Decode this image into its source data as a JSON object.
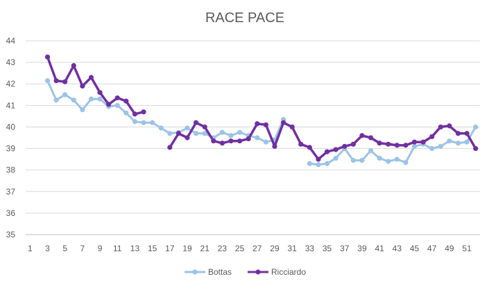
{
  "chart_data": {
    "type": "line",
    "title": "RACE PACE",
    "xlabel": "",
    "ylabel": "",
    "xlim": [
      1,
      52
    ],
    "ylim": [
      35,
      44
    ],
    "x_tick_labels": [
      1,
      3,
      5,
      7,
      9,
      11,
      13,
      15,
      17,
      19,
      21,
      23,
      25,
      27,
      29,
      31,
      33,
      35,
      37,
      39,
      41,
      43,
      45,
      47,
      49,
      51
    ],
    "y_tick_labels": [
      35,
      36,
      37,
      38,
      39,
      40,
      41,
      42,
      43,
      44
    ],
    "grid": "horizontal",
    "legend_position": "bottom",
    "series": [
      {
        "name": "Bottas",
        "color": "#9DC3E6",
        "points": [
          [
            3,
            42.15
          ],
          [
            4,
            41.25
          ],
          [
            5,
            41.5
          ],
          [
            6,
            41.25
          ],
          [
            7,
            40.8
          ],
          [
            8,
            41.3
          ],
          [
            9,
            41.3
          ],
          [
            10,
            40.95
          ],
          [
            11,
            41.0
          ],
          [
            12,
            40.65
          ],
          [
            13,
            40.25
          ],
          [
            14,
            40.2
          ],
          [
            15,
            40.2
          ],
          [
            16,
            39.95
          ],
          [
            17,
            39.7
          ],
          [
            18,
            39.75
          ],
          [
            19,
            39.95
          ],
          [
            20,
            39.7
          ],
          [
            21,
            39.7
          ],
          [
            22,
            39.5
          ],
          [
            23,
            39.75
          ],
          [
            24,
            39.6
          ],
          [
            25,
            39.75
          ],
          [
            26,
            39.6
          ],
          [
            27,
            39.5
          ],
          [
            28,
            39.3
          ],
          [
            29,
            39.4
          ],
          [
            30,
            40.35
          ],
          null,
          [
            33,
            38.3
          ],
          [
            34,
            38.25
          ],
          [
            35,
            38.3
          ],
          [
            36,
            38.55
          ],
          [
            37,
            39.0
          ],
          [
            38,
            38.45
          ],
          [
            39,
            38.45
          ],
          [
            40,
            38.9
          ],
          [
            41,
            38.55
          ],
          [
            42,
            38.4
          ],
          [
            43,
            38.5
          ],
          [
            44,
            38.35
          ],
          [
            45,
            39.1
          ],
          [
            46,
            39.2
          ],
          [
            47,
            39.0
          ],
          [
            48,
            39.1
          ],
          [
            49,
            39.35
          ],
          [
            50,
            39.25
          ],
          [
            51,
            39.3
          ],
          [
            52,
            40.0
          ]
        ]
      },
      {
        "name": "Ricciardo",
        "color": "#7030A0",
        "points": [
          [
            3,
            43.25
          ],
          [
            4,
            42.15
          ],
          [
            5,
            42.1
          ],
          [
            6,
            42.85
          ],
          [
            7,
            41.9
          ],
          [
            8,
            42.3
          ],
          [
            9,
            41.6
          ],
          [
            10,
            41.05
          ],
          [
            11,
            41.35
          ],
          [
            12,
            41.2
          ],
          [
            13,
            40.6
          ],
          [
            14,
            40.7
          ],
          null,
          [
            17,
            39.05
          ],
          [
            18,
            39.7
          ],
          [
            19,
            39.5
          ],
          [
            20,
            40.2
          ],
          [
            21,
            40.0
          ],
          [
            22,
            39.35
          ],
          [
            23,
            39.25
          ],
          [
            24,
            39.35
          ],
          [
            25,
            39.35
          ],
          [
            26,
            39.45
          ],
          [
            27,
            40.15
          ],
          [
            28,
            40.1
          ],
          [
            29,
            39.1
          ],
          [
            30,
            40.2
          ],
          [
            31,
            40.0
          ],
          [
            32,
            39.2
          ],
          [
            33,
            39.05
          ],
          [
            34,
            38.5
          ],
          [
            35,
            38.85
          ],
          [
            36,
            38.95
          ],
          [
            37,
            39.1
          ],
          [
            38,
            39.2
          ],
          [
            39,
            39.6
          ],
          [
            40,
            39.5
          ],
          [
            41,
            39.25
          ],
          [
            42,
            39.2
          ],
          [
            43,
            39.15
          ],
          [
            44,
            39.15
          ],
          [
            45,
            39.3
          ],
          [
            46,
            39.3
          ],
          [
            47,
            39.55
          ],
          [
            48,
            40.0
          ],
          [
            49,
            40.05
          ],
          [
            50,
            39.7
          ],
          [
            51,
            39.7
          ],
          [
            52,
            39.0
          ]
        ]
      }
    ]
  }
}
